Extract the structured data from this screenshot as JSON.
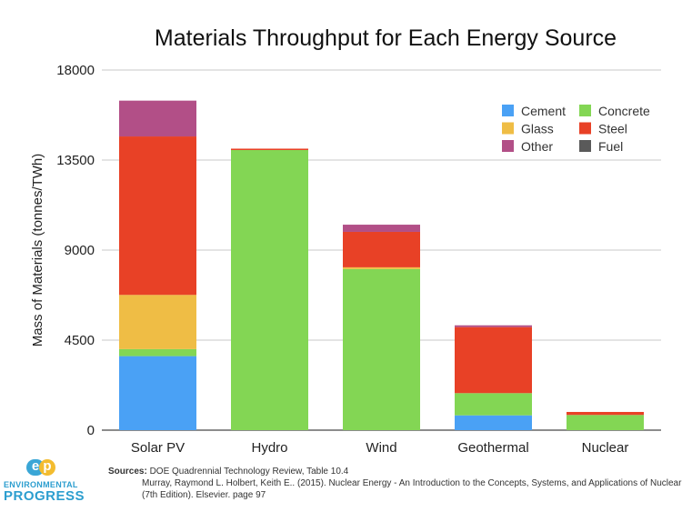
{
  "chart_data": {
    "type": "bar",
    "stacked": true,
    "title": "Materials Throughput for Each Energy Source",
    "xlabel": "",
    "ylabel": "Mass of Materials (tonnes/TWh)",
    "ylim": [
      0,
      18000
    ],
    "yticks": [
      "0",
      "4500",
      "9000",
      "13500",
      "18000"
    ],
    "ytick_values": [
      0,
      4500,
      9000,
      13500,
      18000
    ],
    "grid": true,
    "legend_position": "top-right",
    "categories": [
      "Solar PV",
      "Hydro",
      "Wind",
      "Geothermal",
      "Nuclear"
    ],
    "series": [
      {
        "name": "Cement",
        "color": "#4aa1f5",
        "values": [
          3700,
          0,
          0,
          740,
          0
        ]
      },
      {
        "name": "Concrete",
        "color": "#83d654",
        "values": [
          350,
          14000,
          8050,
          1110,
          760
        ]
      },
      {
        "name": "Glass",
        "color": "#efbd45",
        "values": [
          2710,
          0,
          90,
          0,
          0
        ]
      },
      {
        "name": "Steel",
        "color": "#e84126",
        "values": [
          7920,
          70,
          1770,
          3300,
          150
        ]
      },
      {
        "name": "Other",
        "color": "#b24f87",
        "values": [
          1790,
          0,
          360,
          90,
          0
        ]
      },
      {
        "name": "Fuel",
        "color": "#5a5a5a",
        "values": [
          0,
          0,
          0,
          0,
          0
        ]
      }
    ],
    "legend_order": [
      "Cement",
      "Concrete",
      "Glass",
      "Steel",
      "Other",
      "Fuel"
    ]
  },
  "sources": {
    "label": "Sources:",
    "lines": [
      "DOE Quadrennial Technology Review, Table 10.4",
      "Murray, Raymond L. Holbert, Keith E.. (2015). Nuclear Energy - An Introduction to the Concepts, Systems, and Applications of Nuclear Processes",
      "(7th Edition). Elsevier. page 97"
    ]
  },
  "logo": {
    "mark_e": "e",
    "mark_p": "p",
    "line1": "ENVIRONMENTAL",
    "line2": "PROGRESS"
  }
}
